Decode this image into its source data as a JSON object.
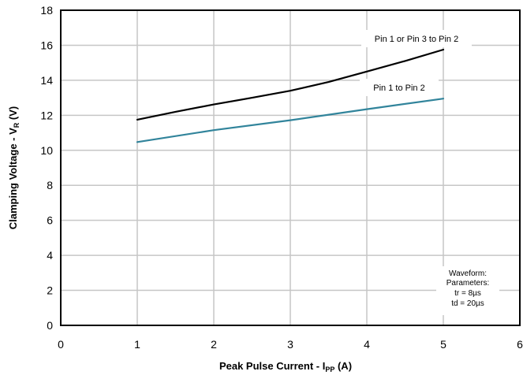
{
  "chart_data": {
    "type": "line",
    "xlim": [
      0,
      6
    ],
    "ylim": [
      0,
      18
    ],
    "xticks": [
      0,
      1,
      2,
      3,
      4,
      5,
      6
    ],
    "yticks": [
      0,
      2,
      4,
      6,
      8,
      10,
      12,
      14,
      16,
      18
    ],
    "grid": true,
    "xlabel": {
      "main": "Peak Pulse Current - I",
      "sub": "PP",
      "unit": " (A)"
    },
    "ylabel": {
      "main": "Clamping Voltage - V",
      "sub": "R",
      "unit": " (V)"
    },
    "series": [
      {
        "name": "Pin 1 or Pin 3 to Pin 2",
        "color": "#000000",
        "x": [
          1,
          1.5,
          2,
          2.5,
          3,
          3.5,
          4,
          4.5,
          5
        ],
        "y": [
          11.75,
          12.2,
          12.62,
          13.0,
          13.4,
          13.9,
          14.5,
          15.1,
          15.75
        ]
      },
      {
        "name": "Pin 1 to Pin 2",
        "color": "#31849B",
        "x": [
          1,
          2,
          3,
          4,
          5
        ],
        "y": [
          10.47,
          11.15,
          11.72,
          12.35,
          12.95
        ]
      }
    ],
    "annotation": {
      "lines": [
        "Waveform:",
        "Parameters:",
        "tr = 8µs",
        "td = 20µs"
      ]
    }
  }
}
